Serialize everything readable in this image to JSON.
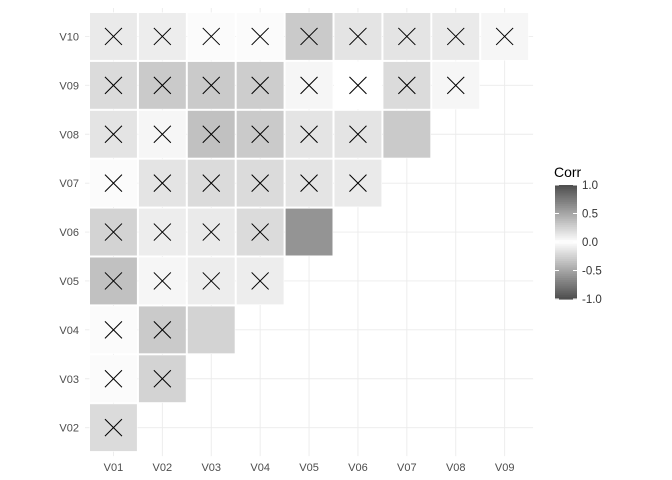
{
  "chart_data": {
    "type": "heatmap",
    "x_labels": [
      "V01",
      "V02",
      "V03",
      "V04",
      "V05",
      "V06",
      "V07",
      "V08",
      "V09"
    ],
    "y_labels": [
      "V02",
      "V03",
      "V04",
      "V05",
      "V06",
      "V07",
      "V08",
      "V09",
      "V10"
    ],
    "legend": {
      "title": "Corr",
      "ticks": [
        {
          "value": 1.0,
          "label": "1.0"
        },
        {
          "value": 0.5,
          "label": "0.5"
        },
        {
          "value": 0.0,
          "label": "0.0"
        },
        {
          "value": -0.5,
          "label": "-0.5"
        },
        {
          "value": -1.0,
          "label": "-1.0"
        }
      ],
      "range": [
        -1,
        1
      ]
    },
    "insignificant_marker": "X",
    "cells": [
      {
        "x": "V01",
        "y": "V02",
        "corr": 0.2,
        "insignificant": true
      },
      {
        "x": "V01",
        "y": "V03",
        "corr": 0.02,
        "insignificant": true
      },
      {
        "x": "V02",
        "y": "V03",
        "corr": 0.25,
        "insignificant": true
      },
      {
        "x": "V01",
        "y": "V04",
        "corr": 0.02,
        "insignificant": true
      },
      {
        "x": "V02",
        "y": "V04",
        "corr": 0.3,
        "insignificant": true
      },
      {
        "x": "V03",
        "y": "V04",
        "corr": 0.25,
        "insignificant": false
      },
      {
        "x": "V01",
        "y": "V05",
        "corr": 0.35,
        "insignificant": true
      },
      {
        "x": "V02",
        "y": "V05",
        "corr": 0.05,
        "insignificant": true
      },
      {
        "x": "V03",
        "y": "V05",
        "corr": 0.1,
        "insignificant": true
      },
      {
        "x": "V04",
        "y": "V05",
        "corr": 0.1,
        "insignificant": true
      },
      {
        "x": "V01",
        "y": "V06",
        "corr": 0.25,
        "insignificant": true
      },
      {
        "x": "V02",
        "y": "V06",
        "corr": 0.1,
        "insignificant": true
      },
      {
        "x": "V03",
        "y": "V06",
        "corr": 0.12,
        "insignificant": true
      },
      {
        "x": "V04",
        "y": "V06",
        "corr": 0.2,
        "insignificant": true
      },
      {
        "x": "V05",
        "y": "V06",
        "corr": 0.6,
        "insignificant": false
      },
      {
        "x": "V01",
        "y": "V07",
        "corr": 0.02,
        "insignificant": true
      },
      {
        "x": "V02",
        "y": "V07",
        "corr": 0.15,
        "insignificant": true
      },
      {
        "x": "V03",
        "y": "V07",
        "corr": 0.2,
        "insignificant": true
      },
      {
        "x": "V04",
        "y": "V07",
        "corr": 0.2,
        "insignificant": true
      },
      {
        "x": "V05",
        "y": "V07",
        "corr": 0.15,
        "insignificant": true
      },
      {
        "x": "V06",
        "y": "V07",
        "corr": 0.12,
        "insignificant": true
      },
      {
        "x": "V01",
        "y": "V08",
        "corr": 0.15,
        "insignificant": true
      },
      {
        "x": "V02",
        "y": "V08",
        "corr": 0.05,
        "insignificant": true
      },
      {
        "x": "V03",
        "y": "V08",
        "corr": 0.35,
        "insignificant": true
      },
      {
        "x": "V04",
        "y": "V08",
        "corr": 0.3,
        "insignificant": true
      },
      {
        "x": "V05",
        "y": "V08",
        "corr": 0.15,
        "insignificant": true
      },
      {
        "x": "V06",
        "y": "V08",
        "corr": 0.15,
        "insignificant": true
      },
      {
        "x": "V07",
        "y": "V08",
        "corr": 0.3,
        "insignificant": false
      },
      {
        "x": "V01",
        "y": "V09",
        "corr": 0.2,
        "insignificant": true
      },
      {
        "x": "V02",
        "y": "V09",
        "corr": 0.3,
        "insignificant": true
      },
      {
        "x": "V03",
        "y": "V09",
        "corr": 0.3,
        "insignificant": true
      },
      {
        "x": "V04",
        "y": "V09",
        "corr": 0.28,
        "insignificant": true
      },
      {
        "x": "V05",
        "y": "V09",
        "corr": 0.05,
        "insignificant": true
      },
      {
        "x": "V06",
        "y": "V09",
        "corr": 0.0,
        "insignificant": true
      },
      {
        "x": "V07",
        "y": "V09",
        "corr": 0.2,
        "insignificant": true
      },
      {
        "x": "V08",
        "y": "V09",
        "corr": 0.05,
        "insignificant": true
      },
      {
        "x": "V01",
        "y": "V10",
        "corr": 0.12,
        "insignificant": true
      },
      {
        "x": "V02",
        "y": "V10",
        "corr": 0.1,
        "insignificant": true
      },
      {
        "x": "V03",
        "y": "V10",
        "corr": 0.02,
        "insignificant": true
      },
      {
        "x": "V04",
        "y": "V10",
        "corr": 0.02,
        "insignificant": true
      },
      {
        "x": "V05",
        "y": "V10",
        "corr": 0.3,
        "insignificant": true
      },
      {
        "x": "V06",
        "y": "V10",
        "corr": 0.15,
        "insignificant": true
      },
      {
        "x": "V07",
        "y": "V10",
        "corr": 0.15,
        "insignificant": true
      },
      {
        "x": "V08",
        "y": "V10",
        "corr": 0.12,
        "insignificant": true
      },
      {
        "x": "V09",
        "y": "V10",
        "corr": 0.05,
        "insignificant": true
      }
    ],
    "grid": true,
    "legend_position": "right"
  }
}
